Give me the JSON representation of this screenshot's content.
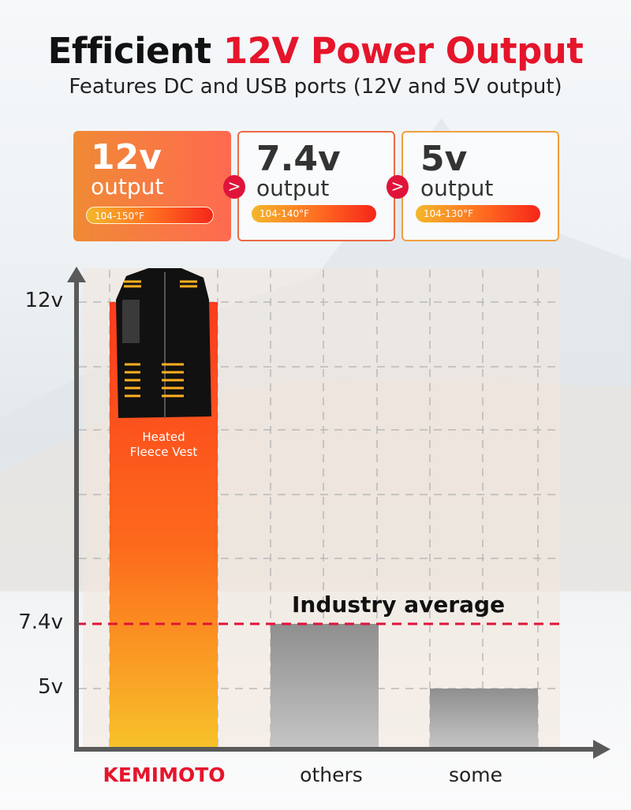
{
  "header": {
    "title_prefix": "Efficient",
    "title_highlight": "12V Power Output",
    "subtitle": "Features DC and USB ports (12V and 5V output)"
  },
  "cards": [
    {
      "voltage": "12v",
      "label": "output",
      "temp_range": "104-150°F"
    },
    {
      "voltage": "7.4v",
      "label": "output",
      "temp_range": "104-140°F"
    },
    {
      "voltage": "5v",
      "label": "output",
      "temp_range": "104-130°F"
    }
  ],
  "chevron": ">",
  "product_label_line1": "Heated",
  "product_label_line2": "Fleece Vest",
  "colors": {
    "accent": "#e5152b",
    "bar_top": "#fb3b1e",
    "bar_bottom": "#f7c12a",
    "gray": "#9a9a9a"
  },
  "chart_data": {
    "type": "bar",
    "categories": [
      "KEMIMOTO",
      "others",
      "some"
    ],
    "values": [
      12,
      7.4,
      5
    ],
    "units": "V",
    "yticks": [
      {
        "value": 12,
        "label": "12v"
      },
      {
        "value": 7.4,
        "label": "7.4v"
      },
      {
        "value": 5,
        "label": "5v"
      }
    ],
    "reference_line": {
      "value": 7.4,
      "label": "Industry average"
    },
    "title": "",
    "xlabel": "",
    "ylabel": "",
    "grid": true
  }
}
